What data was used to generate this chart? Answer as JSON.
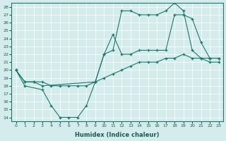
{
  "xlabel": "Humidex (Indice chaleur)",
  "xlim": [
    -0.5,
    23.5
  ],
  "ylim": [
    13.5,
    28.5
  ],
  "xticks": [
    0,
    1,
    2,
    3,
    4,
    5,
    6,
    7,
    8,
    9,
    10,
    11,
    12,
    13,
    14,
    15,
    16,
    17,
    18,
    19,
    20,
    21,
    22,
    23
  ],
  "yticks": [
    14,
    15,
    16,
    17,
    18,
    19,
    20,
    21,
    22,
    23,
    24,
    25,
    26,
    27,
    28
  ],
  "bg_color": "#d4eceb",
  "line_color": "#1a7a6e",
  "line1_x": [
    0,
    1,
    3,
    4,
    5,
    6,
    7,
    8,
    9,
    10,
    11,
    12,
    13,
    14,
    15,
    16,
    17,
    18,
    19,
    20,
    21,
    22,
    23
  ],
  "line1_y": [
    20,
    18,
    17.5,
    15.5,
    14,
    14,
    14,
    15.5,
    18.5,
    22,
    22.5,
    27.5,
    27.5,
    27,
    27,
    27,
    27.5,
    28.5,
    27.5,
    22.5,
    21.5,
    21,
    21
  ],
  "line2_x": [
    0,
    1,
    2,
    3,
    9,
    10,
    11,
    12,
    13,
    14,
    15,
    16,
    17,
    18,
    19,
    20,
    21,
    22,
    23
  ],
  "line2_y": [
    20,
    18.5,
    18.5,
    18,
    18.5,
    22,
    24.5,
    22,
    22,
    22.5,
    22.5,
    22.5,
    22.5,
    27,
    27,
    26.5,
    23.5,
    21.5,
    21.5
  ],
  "line3_x": [
    0,
    1,
    2,
    3,
    4,
    5,
    6,
    7,
    8,
    9,
    10,
    11,
    12,
    13,
    14,
    15,
    16,
    17,
    18,
    19,
    20,
    21,
    22,
    23
  ],
  "line3_y": [
    20,
    18.5,
    18.5,
    18.5,
    18,
    18,
    18,
    18,
    18,
    18.5,
    19,
    19.5,
    20,
    20.5,
    21,
    21,
    21,
    21.5,
    21.5,
    22,
    21.5,
    21.5,
    21.5,
    21.5
  ]
}
